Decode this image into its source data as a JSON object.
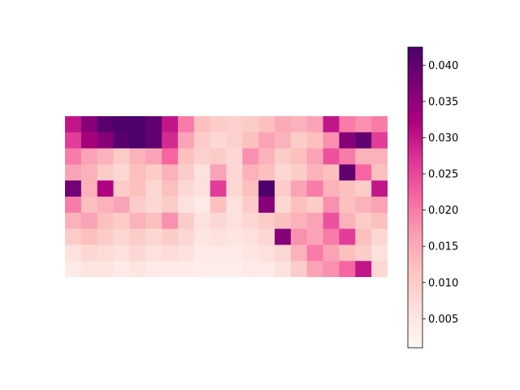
{
  "chart_data": {
    "type": "heatmap",
    "title": "",
    "xlabel": "",
    "ylabel": "",
    "colormap": "RdPu",
    "colormap_stops": [
      "#fff7f3",
      "#fde0dd",
      "#fcc5c0",
      "#fa9fb5",
      "#f768a1",
      "#dd3497",
      "#ae017e",
      "#7a0177",
      "#49006a"
    ],
    "vmin": 0.001,
    "vmax": 0.0425,
    "colorbar": {
      "ticks": [
        0.005,
        0.01,
        0.015,
        0.02,
        0.025,
        0.03,
        0.035,
        0.04
      ],
      "tick_labels": [
        "0.005",
        "0.010",
        "0.015",
        "0.020",
        "0.025",
        "0.030",
        "0.035",
        "0.040"
      ]
    },
    "grid_shape": [
      10,
      20
    ],
    "values": [
      [
        0.03,
        0.036,
        0.041,
        0.042,
        0.042,
        0.04,
        0.03,
        0.02,
        0.012,
        0.01,
        0.009,
        0.01,
        0.012,
        0.015,
        0.014,
        0.016,
        0.03,
        0.02,
        0.018,
        0.02
      ],
      [
        0.026,
        0.033,
        0.036,
        0.041,
        0.042,
        0.04,
        0.028,
        0.016,
        0.01,
        0.008,
        0.009,
        0.012,
        0.016,
        0.014,
        0.01,
        0.012,
        0.018,
        0.036,
        0.04,
        0.026
      ],
      [
        0.02,
        0.016,
        0.014,
        0.01,
        0.014,
        0.016,
        0.022,
        0.012,
        0.009,
        0.01,
        0.008,
        0.018,
        0.014,
        0.01,
        0.012,
        0.016,
        0.024,
        0.02,
        0.014,
        0.014
      ],
      [
        0.016,
        0.014,
        0.01,
        0.008,
        0.012,
        0.01,
        0.014,
        0.01,
        0.006,
        0.016,
        0.008,
        0.014,
        0.012,
        0.008,
        0.01,
        0.014,
        0.012,
        0.04,
        0.022,
        0.012
      ],
      [
        0.038,
        0.014,
        0.032,
        0.01,
        0.012,
        0.008,
        0.012,
        0.008,
        0.006,
        0.026,
        0.008,
        0.012,
        0.042,
        0.01,
        0.016,
        0.02,
        0.014,
        0.012,
        0.01,
        0.03
      ],
      [
        0.02,
        0.012,
        0.014,
        0.016,
        0.01,
        0.008,
        0.01,
        0.006,
        0.004,
        0.012,
        0.006,
        0.01,
        0.036,
        0.008,
        0.012,
        0.01,
        0.018,
        0.012,
        0.014,
        0.016
      ],
      [
        0.014,
        0.016,
        0.012,
        0.01,
        0.014,
        0.012,
        0.018,
        0.01,
        0.006,
        0.008,
        0.006,
        0.008,
        0.01,
        0.012,
        0.014,
        0.016,
        0.024,
        0.014,
        0.01,
        0.012
      ],
      [
        0.01,
        0.012,
        0.01,
        0.008,
        0.01,
        0.008,
        0.01,
        0.008,
        0.005,
        0.006,
        0.005,
        0.006,
        0.008,
        0.036,
        0.018,
        0.016,
        0.02,
        0.026,
        0.012,
        0.008
      ],
      [
        0.006,
        0.008,
        0.007,
        0.006,
        0.008,
        0.006,
        0.007,
        0.006,
        0.004,
        0.004,
        0.004,
        0.005,
        0.006,
        0.008,
        0.014,
        0.02,
        0.016,
        0.012,
        0.01,
        0.006
      ],
      [
        0.004,
        0.005,
        0.005,
        0.004,
        0.005,
        0.004,
        0.004,
        0.004,
        0.003,
        0.003,
        0.003,
        0.004,
        0.004,
        0.006,
        0.01,
        0.016,
        0.018,
        0.022,
        0.03,
        0.008
      ]
    ]
  }
}
